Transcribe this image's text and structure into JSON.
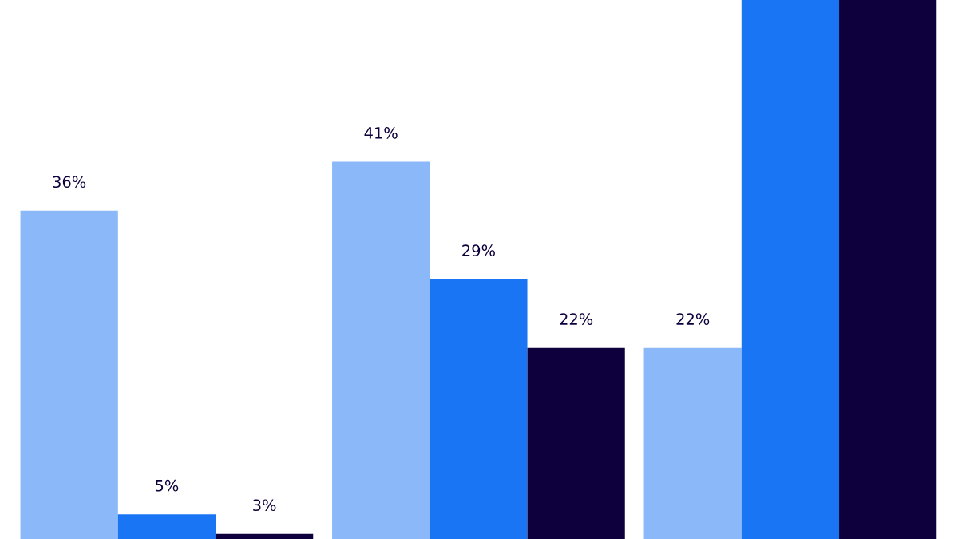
{
  "chart_data": {
    "type": "bar",
    "categories": [
      null,
      null,
      null
    ],
    "series": [
      {
        "color": "#8ab8f8",
        "values": [
          36,
          41,
          22
        ],
        "value_labels": [
          "36%",
          "41%",
          "22%"
        ]
      },
      {
        "color": "#1a75f5",
        "values": [
          5,
          29,
          57.5
        ],
        "value_labels": [
          "5%",
          "29%",
          null
        ]
      },
      {
        "color": "#0e003d",
        "values": [
          3,
          22,
          57.5
        ],
        "value_labels": [
          "3%",
          "22%",
          null
        ]
      }
    ],
    "ylim": [
      2.5,
      57.5
    ],
    "grid": false,
    "legend": false
  }
}
